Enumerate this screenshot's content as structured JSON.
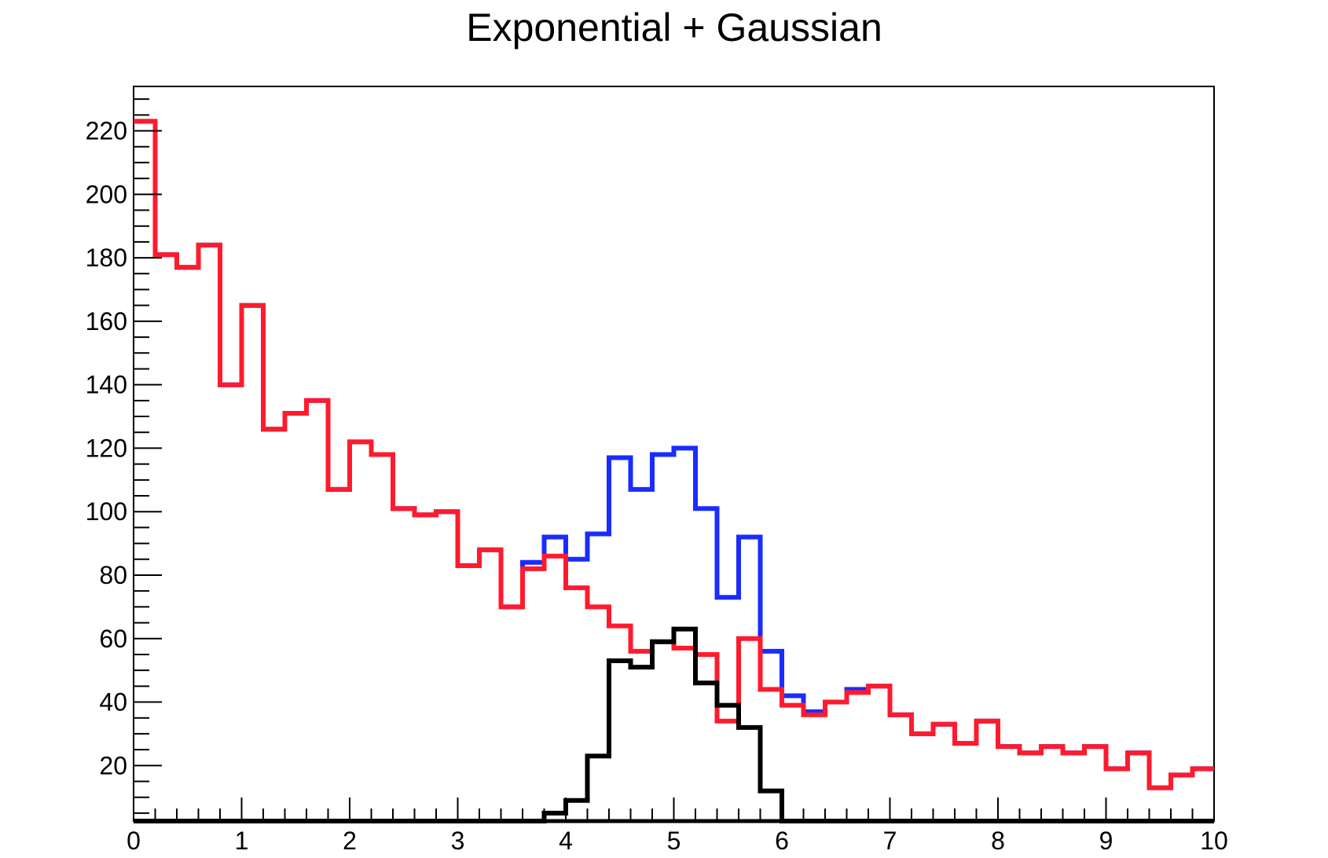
{
  "chart_data": {
    "type": "histogram",
    "title": "Exponential + Gaussian",
    "xlabel": "",
    "ylabel": "",
    "xlim": [
      0,
      10
    ],
    "ylim": [
      2.5,
      234
    ],
    "grid": false,
    "bin_edges": [
      0,
      0.2,
      0.4,
      0.6,
      0.8,
      1.0,
      1.2,
      1.4,
      1.6,
      1.8,
      2.0,
      2.2,
      2.4,
      2.6,
      2.8,
      3.0,
      3.2,
      3.4,
      3.6,
      3.8,
      4.0,
      4.2,
      4.4,
      4.6,
      4.8,
      5.0,
      5.2,
      5.4,
      5.6,
      5.8,
      6.0,
      6.2,
      6.4,
      6.6,
      6.8,
      7.0,
      7.2,
      7.4,
      7.6,
      7.8,
      8.0,
      8.2,
      8.4,
      8.6,
      8.8,
      9.0,
      9.2,
      9.4,
      9.6,
      9.8,
      10.0
    ],
    "x_ticks": [
      "0",
      "1",
      "2",
      "3",
      "4",
      "5",
      "6",
      "7",
      "8",
      "9",
      "10"
    ],
    "y_ticks": [
      "20",
      "40",
      "60",
      "80",
      "100",
      "120",
      "140",
      "160",
      "180",
      "200",
      "220"
    ],
    "series": [
      {
        "color": "#1a2cff",
        "values": [
          223,
          181,
          177,
          184,
          140,
          165,
          126,
          131,
          135,
          107,
          122,
          118,
          101,
          99,
          100,
          83,
          88,
          70,
          84,
          92,
          85,
          93,
          117,
          107,
          118,
          120,
          101,
          73,
          92,
          56,
          42,
          37,
          40,
          44,
          45,
          36,
          30,
          33,
          27,
          34,
          26,
          24,
          26,
          24,
          26,
          19,
          24,
          13,
          17,
          19
        ]
      },
      {
        "color": "#ff1a2e",
        "values": [
          223,
          181,
          177,
          184,
          140,
          165,
          126,
          131,
          135,
          107,
          122,
          118,
          101,
          99,
          100,
          83,
          88,
          70,
          82,
          86,
          76,
          70,
          64,
          56,
          59,
          57,
          55,
          34,
          60,
          44,
          39,
          36,
          40,
          43,
          45,
          36,
          30,
          33,
          27,
          34,
          26,
          24,
          26,
          24,
          26,
          19,
          24,
          13,
          17,
          19
        ]
      },
      {
        "color": "#000000",
        "values": [
          0,
          0,
          0,
          0,
          0,
          0,
          0,
          0,
          0,
          0,
          0,
          0,
          0,
          0,
          0,
          0,
          0,
          0,
          0,
          5,
          9,
          23,
          53,
          51,
          59,
          63,
          46,
          39,
          32,
          12,
          2,
          0,
          0,
          0,
          0,
          0,
          0,
          0,
          0,
          0,
          0,
          0,
          0,
          0,
          0,
          0,
          0,
          0,
          0,
          0
        ]
      }
    ]
  }
}
